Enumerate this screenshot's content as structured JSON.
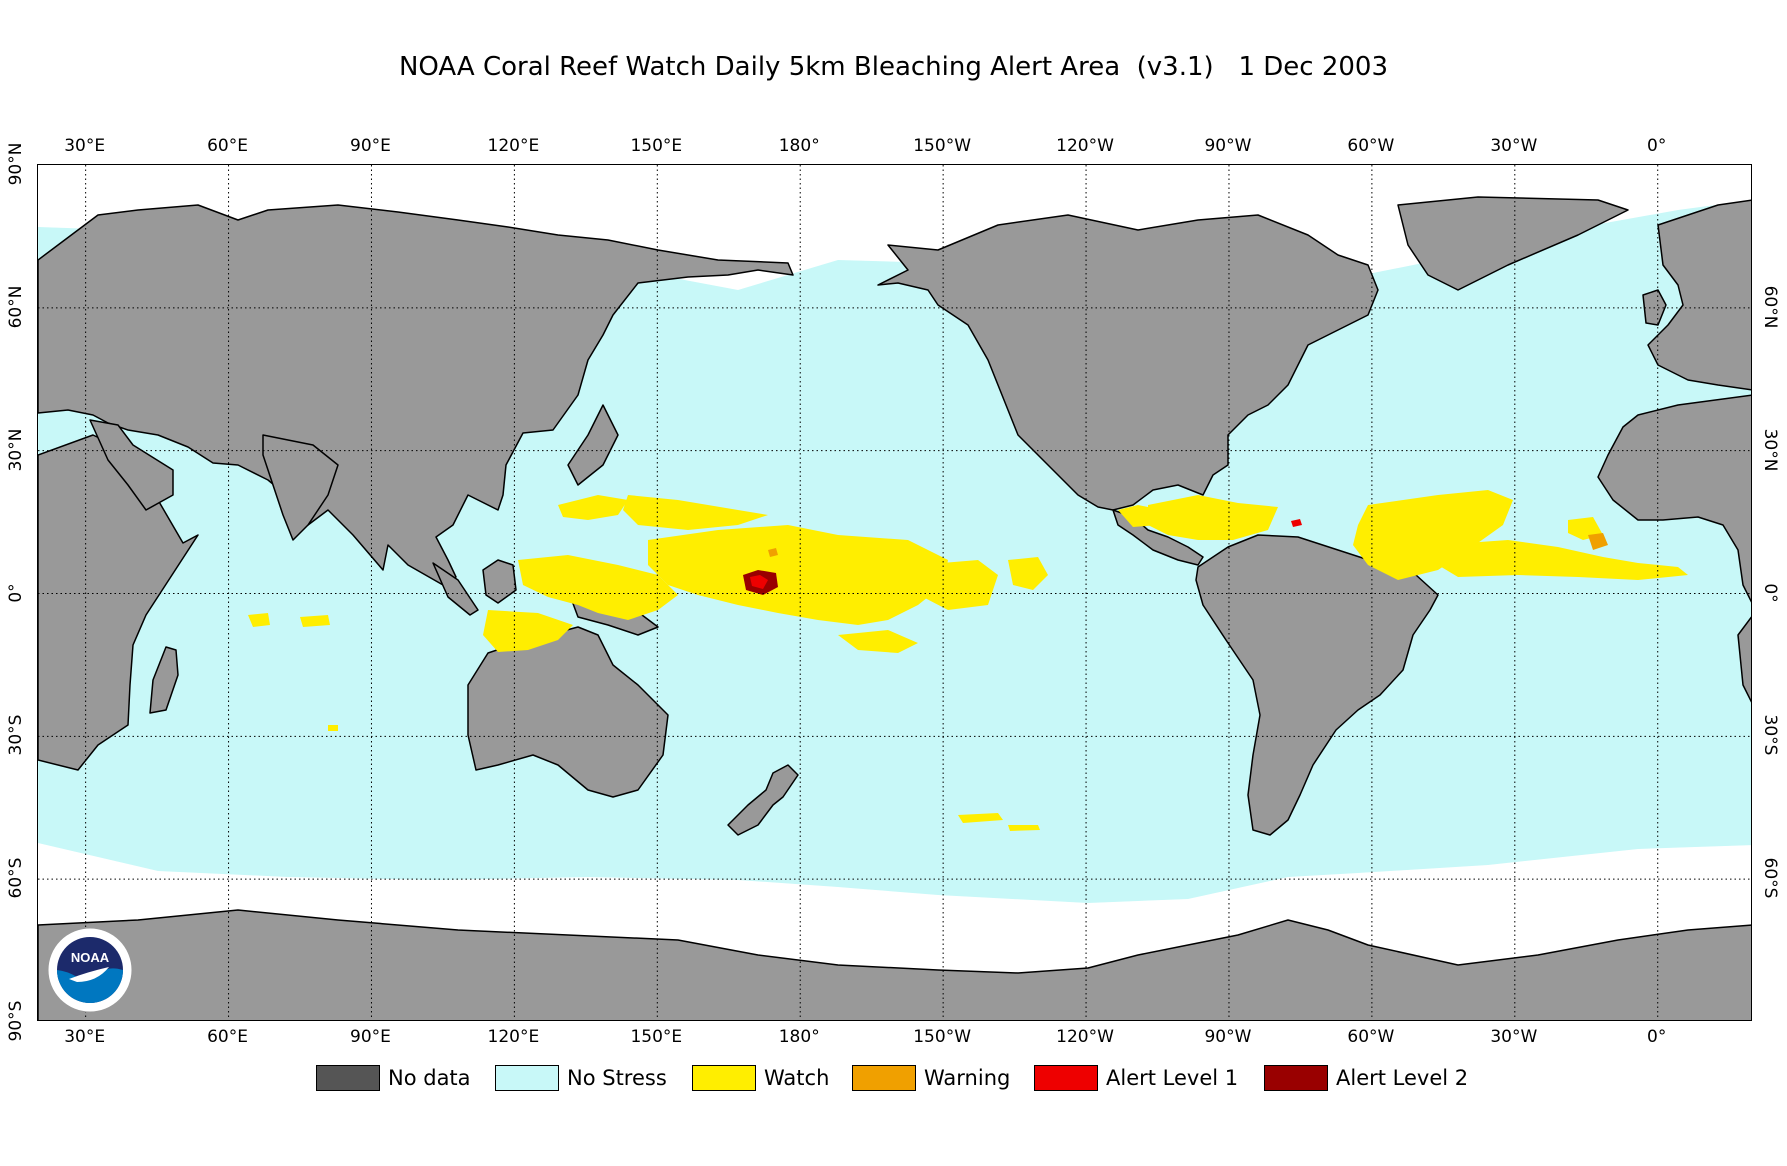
{
  "title": "NOAA Coral Reef Watch Daily 5km Bleaching Alert Area  (v3.1)   1 Dec 2003",
  "map": {
    "projection": "equirectangular, Pacific-centred",
    "lon_range_east": [
      20,
      380
    ],
    "lat_range": [
      -90,
      90
    ],
    "gridlines": "dotted, every 30°",
    "colors": {
      "land": "#999999",
      "no_stress_ocean": "#c8f8f8",
      "sea_ice": "#ffffff",
      "watch": "#ffee00",
      "warning": "#f0a000",
      "alert1": "#ee0000",
      "alert2": "#990000"
    },
    "lon_ticks": [
      {
        "lon": 30,
        "label": "30°E"
      },
      {
        "lon": 60,
        "label": "60°E"
      },
      {
        "lon": 90,
        "label": "90°E"
      },
      {
        "lon": 120,
        "label": "120°E"
      },
      {
        "lon": 150,
        "label": "150°E"
      },
      {
        "lon": 180,
        "label": "180°"
      },
      {
        "lon": 210,
        "label": "150°W"
      },
      {
        "lon": 240,
        "label": "120°W"
      },
      {
        "lon": 270,
        "label": "90°W"
      },
      {
        "lon": 300,
        "label": "60°W"
      },
      {
        "lon": 330,
        "label": "30°W"
      },
      {
        "lon": 360,
        "label": "0°"
      }
    ],
    "lat_ticks_left": [
      {
        "lat": 90,
        "label": "90°N"
      },
      {
        "lat": 60,
        "label": "60°N"
      },
      {
        "lat": 30,
        "label": "30°N"
      },
      {
        "lat": 0,
        "label": "0°"
      },
      {
        "lat": -30,
        "label": "30°S"
      },
      {
        "lat": -60,
        "label": "60°S"
      },
      {
        "lat": -90,
        "label": "90°S"
      }
    ],
    "lat_ticks_right": [
      {
        "lat": 60,
        "label": "60°N"
      },
      {
        "lat": 30,
        "label": "30°N"
      },
      {
        "lat": 0,
        "label": "0°"
      },
      {
        "lat": -30,
        "label": "30°S"
      },
      {
        "lat": -60,
        "label": "60°S"
      }
    ]
  },
  "legend": [
    {
      "label": "No data",
      "color": "#555555"
    },
    {
      "label": "No Stress",
      "color": "#c8f8f8"
    },
    {
      "label": "Watch",
      "color": "#ffee00"
    },
    {
      "label": "Warning",
      "color": "#f0a000"
    },
    {
      "label": "Alert Level 1",
      "color": "#ee0000"
    },
    {
      "label": "Alert Level 2",
      "color": "#990000"
    }
  ],
  "logo": {
    "text": "NOAA",
    "icon": "noaa-logo-icon"
  }
}
